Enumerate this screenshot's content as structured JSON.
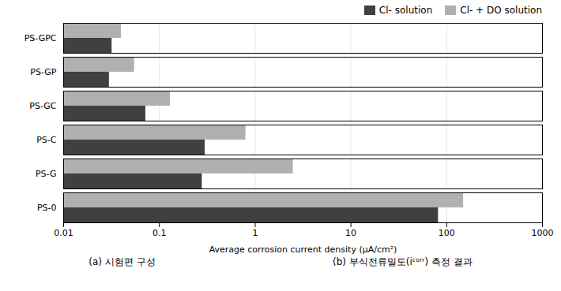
{
  "chart_data": {
    "type": "bar",
    "orientation": "horizontal",
    "categories": [
      "PS-GPC",
      "PS-GP",
      "PS-GC",
      "PS-C",
      "PS-G",
      "PS-0"
    ],
    "series": [
      {
        "name": "Cl- solution",
        "color": "#404040",
        "values": [
          0.032,
          0.03,
          0.072,
          0.3,
          0.28,
          82.0
        ]
      },
      {
        "name": "Cl- + DO solution",
        "color": "#b0b0b0",
        "values": [
          0.04,
          0.055,
          0.13,
          0.8,
          2.5,
          150.0
        ]
      }
    ],
    "x_label": "Average corrosion current density (μA/cm²)",
    "log": "x",
    "xlim": [
      0.01,
      1000
    ],
    "xticks": [
      0.01,
      0.1,
      1,
      10,
      100,
      1000
    ],
    "grid": true,
    "legend": "upper right",
    "annotations": [
      "(a)  시험편  구성",
      "(b)  부식전류밀도(iᶜᵒʳʳ)  측정  결과"
    ]
  }
}
